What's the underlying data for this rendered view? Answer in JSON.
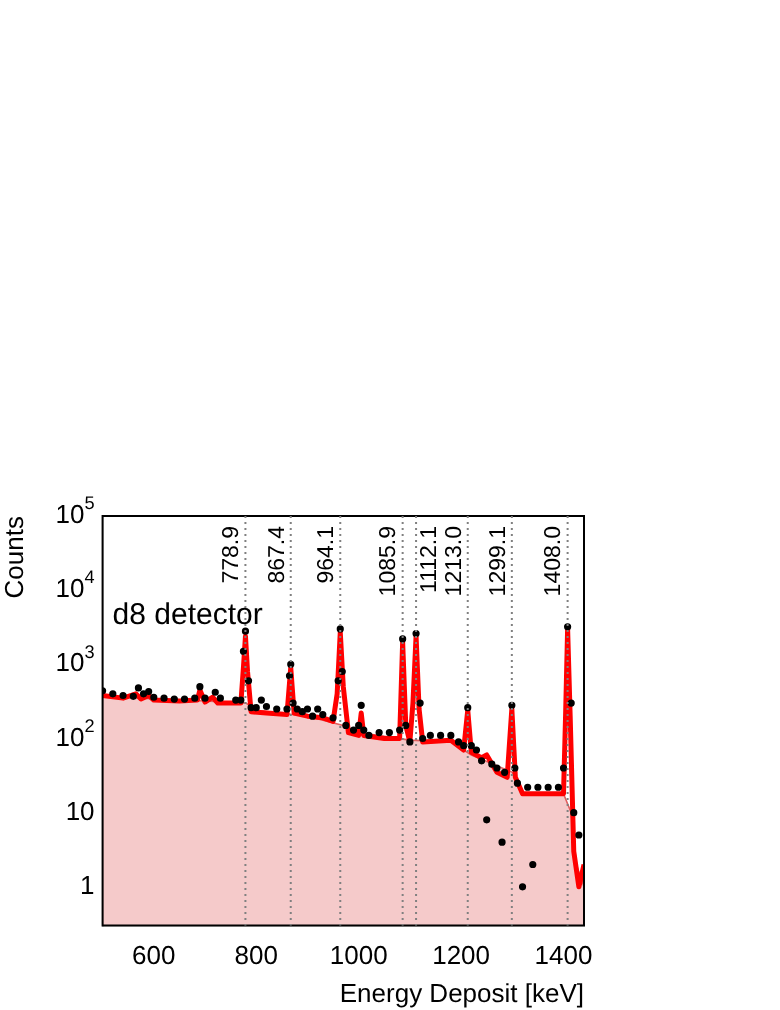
{
  "chart_data": {
    "type": "scatter",
    "xlabel": "Energy Deposit [keV]",
    "ylabel": "Counts",
    "log": "y",
    "grid": false,
    "legend": false,
    "xlim": [
      500,
      1440
    ],
    "xticks": [
      600,
      800,
      1000,
      1200,
      1400
    ],
    "ylim": [
      0.3,
      100000
    ],
    "yticks": [
      1,
      10,
      {
        "value": 100,
        "label": "10$^{2}$"
      },
      {
        "value": 1000,
        "label": "10$^{3}$"
      },
      {
        "value": 10000,
        "label": "10$^{4}$"
      },
      {
        "value": 100000,
        "label": "10$^{5}$"
      }
    ],
    "annotations": [
      "d8 detector"
    ],
    "ref_lines": [
      {
        "axis": "x",
        "value": 778.9,
        "label": "778.9",
        "color": "#808080",
        "line_style": "dotted"
      },
      {
        "axis": "x",
        "value": 867.4,
        "label": "867.4",
        "color": "#808080",
        "line_style": "dotted"
      },
      {
        "axis": "x",
        "value": 964.1,
        "label": "964.1",
        "color": "#808080",
        "line_style": "dotted"
      },
      {
        "axis": "x",
        "value": 1085.9,
        "label": "1085.9",
        "color": "#808080",
        "line_style": "dotted"
      },
      {
        "axis": "x",
        "value": 1112.1,
        "label": "1112.1",
        "color": "#808080",
        "line_style": "dotted"
      },
      {
        "axis": "x",
        "value": 1213.0,
        "label": "1213.0",
        "color": "#808080",
        "line_style": "dotted"
      },
      {
        "axis": "x",
        "value": 1299.1,
        "label": "1299.1",
        "color": "#808080",
        "line_style": "dotted"
      },
      {
        "axis": "x",
        "value": 1408.0,
        "label": "1408.0",
        "color": "#808080",
        "line_style": "dotted"
      }
    ],
    "series": [
      {
        "type": "area",
        "color": "#e06060",
        "x": [
          500,
          600,
          700,
          780,
          800,
          900,
          970,
          1000,
          1100,
          1180,
          1220,
          1300,
          1320,
          1400,
          1415,
          1425,
          1440
        ],
        "values": [
          380,
          340,
          320,
          300,
          240,
          200,
          150,
          120,
          95,
          90,
          60,
          35,
          18,
          18,
          10,
          2,
          1
        ]
      },
      {
        "type": "line",
        "color": "#ff0000",
        "marker": "none",
        "x": [
          500,
          540,
          565,
          575,
          590,
          600,
          650,
          685,
          690,
          700,
          715,
          725,
          740,
          770,
          775,
          779,
          783,
          790,
          820,
          860,
          867.4,
          874,
          900,
          930,
          950,
          958,
          964.1,
          970,
          980,
          1000,
          1005,
          1010,
          1050,
          1080,
          1085.9,
          1092,
          1100,
          1106,
          1112.1,
          1118,
          1125,
          1180,
          1205,
          1213,
          1220,
          1240,
          1250,
          1270,
          1290,
          1299.1,
          1306,
          1320,
          1400,
          1404,
          1408,
          1413,
          1420,
          1430,
          1440
        ],
        "values": [
          380,
          350,
          400,
          340,
          380,
          330,
          320,
          330,
          450,
          310,
          360,
          300,
          300,
          300,
          900,
          2400,
          800,
          230,
          220,
          210,
          900,
          220,
          200,
          190,
          170,
          400,
          2700,
          500,
          120,
          110,
          220,
          110,
          100,
          100,
          2000,
          150,
          90,
          300,
          2400,
          250,
          90,
          95,
          70,
          240,
          65,
          55,
          60,
          35,
          30,
          250,
          30,
          18,
          18,
          200,
          3000,
          200,
          3,
          1,
          2
        ]
      },
      {
        "type": "scatter",
        "color": "#000000",
        "marker": "circle",
        "x": [
          500,
          520,
          540,
          560,
          570,
          580,
          590,
          600,
          620,
          640,
          660,
          680,
          690,
          700,
          720,
          730,
          760,
          770,
          775,
          779,
          785,
          790,
          800,
          810,
          820,
          840,
          860,
          865,
          867.4,
          872,
          880,
          890,
          900,
          910,
          920,
          930,
          950,
          960,
          964.1,
          968,
          975,
          990,
          1000,
          1005,
          1010,
          1020,
          1040,
          1060,
          1080,
          1085.9,
          1092,
          1100,
          1112.1,
          1120,
          1125,
          1140,
          1160,
          1180,
          1195,
          1205,
          1213,
          1220,
          1230,
          1240,
          1250,
          1260,
          1270,
          1280,
          1285,
          1299.1,
          1305,
          1310,
          1320,
          1330,
          1340,
          1350,
          1370,
          1390,
          1400,
          1408,
          1415,
          1420,
          1430
        ],
        "values": [
          440,
          400,
          380,
          370,
          480,
          400,
          430,
          360,
          350,
          340,
          340,
          350,
          500,
          350,
          420,
          350,
          330,
          330,
          1500,
          2800,
          600,
          260,
          260,
          330,
          270,
          250,
          250,
          700,
          1000,
          300,
          250,
          230,
          250,
          200,
          250,
          210,
          190,
          600,
          3000,
          800,
          150,
          130,
          150,
          280,
          130,
          110,
          120,
          120,
          130,
          2200,
          150,
          90,
          2600,
          300,
          100,
          110,
          110,
          110,
          90,
          80,
          260,
          80,
          70,
          50,
          8,
          45,
          40,
          4,
          35,
          280,
          40,
          25,
          1,
          22,
          2,
          22,
          22,
          22,
          40,
          3200,
          300,
          10,
          5
        ]
      }
    ]
  }
}
